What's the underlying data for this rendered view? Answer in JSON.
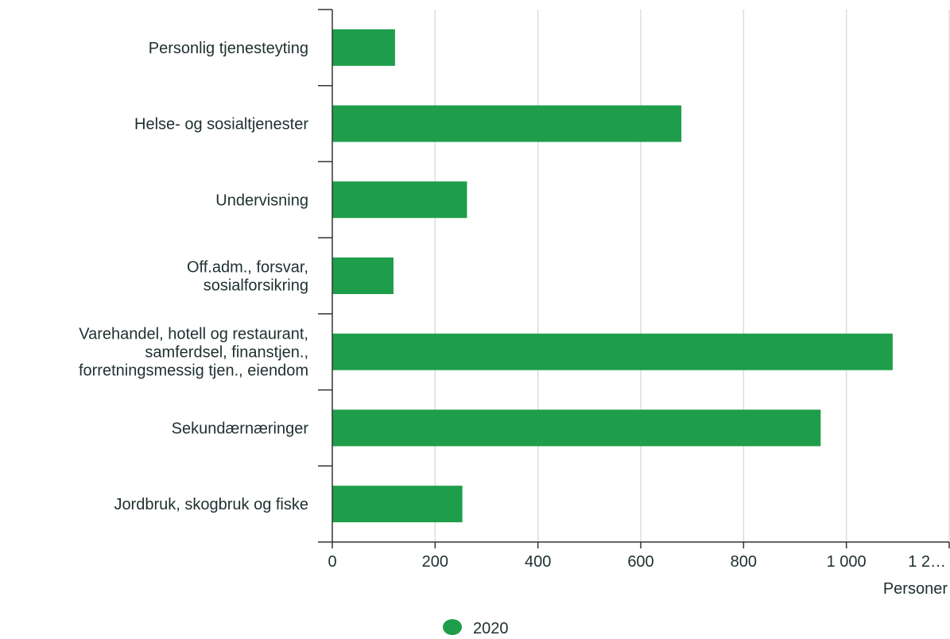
{
  "chart_data": {
    "type": "bar",
    "orientation": "horizontal",
    "categories": [
      "Personlig tjenesteyting",
      "Helse- og sosialtjenester",
      "Undervisning",
      "Off.adm., forsvar, sosialforsikring",
      "Varehandel, hotell og restaurant, samferdsel, finanstjen., forretningsmessig tjen., eiendom",
      "Sekundærnæringer",
      "Jordbruk, skogbruk og fiske"
    ],
    "category_label_lines": [
      [
        "Personlig tjenesteyting"
      ],
      [
        "Helse- og sosialtjenester"
      ],
      [
        "Undervisning"
      ],
      [
        "Off.adm., forsvar,",
        "sosialforsikring"
      ],
      [
        "Varehandel, hotell og restaurant,",
        "samferdsel, finanstjen.,",
        "forretningsmessig tjen., eiendom"
      ],
      [
        "Sekundærnæringer"
      ],
      [
        "Jordbruk, skogbruk og fiske"
      ]
    ],
    "series": [
      {
        "name": "2020",
        "color": "#1e9e4a",
        "values": [
          122,
          679,
          262,
          119,
          1090,
          950,
          253
        ]
      }
    ],
    "xlabel": "Personer",
    "xlim": [
      0,
      1200
    ],
    "xticks": [
      0,
      200,
      400,
      600,
      800,
      1000,
      1200
    ],
    "xtick_labels": [
      "0",
      "200",
      "400",
      "600",
      "800",
      "1 000",
      "1 2…"
    ],
    "grid": true,
    "legend": {
      "position": "bottom",
      "entries": [
        "2020"
      ]
    }
  }
}
